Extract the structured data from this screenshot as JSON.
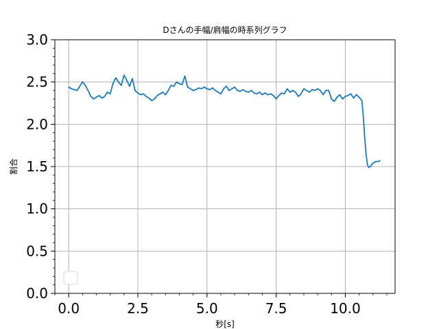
{
  "chart_data": {
    "type": "line",
    "title": "Dさんの手幅/肩幅の時系列グラフ",
    "xlabel": "秒[s]",
    "ylabel": "割合",
    "xlim": [
      -0.5,
      11.8
    ],
    "ylim": [
      0.0,
      3.0
    ],
    "xticks": [
      "0.0",
      "2.5",
      "5.0",
      "7.5",
      "10.0"
    ],
    "xtick_values": [
      0.0,
      2.5,
      5.0,
      7.5,
      10.0
    ],
    "yticks": [
      "0.0",
      "0.5",
      "1.0",
      "1.5",
      "2.0",
      "2.5",
      "3.0"
    ],
    "ytick_values": [
      0.0,
      0.5,
      1.0,
      1.5,
      2.0,
      2.5,
      3.0
    ],
    "grid": true,
    "legend": "lower-left (empty)",
    "line_color": "#1f77b4",
    "series": [
      {
        "x": [
          0.0,
          0.1,
          0.2,
          0.3,
          0.4,
          0.5,
          0.6,
          0.7,
          0.8,
          0.9,
          1.0,
          1.1,
          1.2,
          1.3,
          1.4,
          1.5,
          1.6,
          1.7,
          1.8,
          1.9,
          2.0,
          2.1,
          2.2,
          2.3,
          2.4,
          2.5,
          2.6,
          2.7,
          2.8,
          2.9,
          3.0,
          3.1,
          3.2,
          3.3,
          3.4,
          3.5,
          3.6,
          3.7,
          3.8,
          3.9,
          4.0,
          4.1,
          4.2,
          4.3,
          4.4,
          4.5,
          4.6,
          4.7,
          4.8,
          4.9,
          5.0,
          5.1,
          5.2,
          5.3,
          5.4,
          5.5,
          5.6,
          5.7,
          5.8,
          5.9,
          6.0,
          6.1,
          6.2,
          6.3,
          6.4,
          6.5,
          6.6,
          6.7,
          6.8,
          6.9,
          7.0,
          7.1,
          7.2,
          7.3,
          7.4,
          7.5,
          7.6,
          7.7,
          7.8,
          7.9,
          8.0,
          8.1,
          8.2,
          8.3,
          8.4,
          8.5,
          8.6,
          8.7,
          8.8,
          8.9,
          9.0,
          9.1,
          9.2,
          9.3,
          9.4,
          9.5,
          9.6,
          9.7,
          9.8,
          9.9,
          10.0,
          10.1,
          10.2,
          10.3,
          10.4,
          10.5,
          10.6,
          10.65,
          10.7,
          10.75,
          10.8,
          10.85,
          10.9,
          11.0,
          11.1,
          11.2,
          11.25
        ],
        "y": [
          2.44,
          2.42,
          2.41,
          2.4,
          2.45,
          2.5,
          2.46,
          2.4,
          2.33,
          2.3,
          2.32,
          2.34,
          2.31,
          2.33,
          2.38,
          2.36,
          2.48,
          2.55,
          2.5,
          2.46,
          2.58,
          2.52,
          2.45,
          2.54,
          2.4,
          2.37,
          2.35,
          2.36,
          2.33,
          2.31,
          2.28,
          2.3,
          2.34,
          2.36,
          2.38,
          2.35,
          2.4,
          2.46,
          2.45,
          2.5,
          2.48,
          2.47,
          2.57,
          2.44,
          2.42,
          2.4,
          2.41,
          2.43,
          2.42,
          2.44,
          2.42,
          2.41,
          2.43,
          2.4,
          2.38,
          2.36,
          2.42,
          2.45,
          2.4,
          2.42,
          2.44,
          2.4,
          2.39,
          2.41,
          2.39,
          2.38,
          2.4,
          2.37,
          2.36,
          2.38,
          2.35,
          2.37,
          2.35,
          2.36,
          2.34,
          2.3,
          2.34,
          2.37,
          2.36,
          2.42,
          2.38,
          2.4,
          2.38,
          2.33,
          2.36,
          2.42,
          2.4,
          2.38,
          2.41,
          2.4,
          2.42,
          2.4,
          2.35,
          2.4,
          2.4,
          2.3,
          2.27,
          2.32,
          2.35,
          2.3,
          2.33,
          2.34,
          2.36,
          2.31,
          2.35,
          2.32,
          2.28,
          2.1,
          1.85,
          1.65,
          1.52,
          1.49,
          1.5,
          1.54,
          1.56,
          1.56,
          1.57
        ]
      }
    ]
  }
}
